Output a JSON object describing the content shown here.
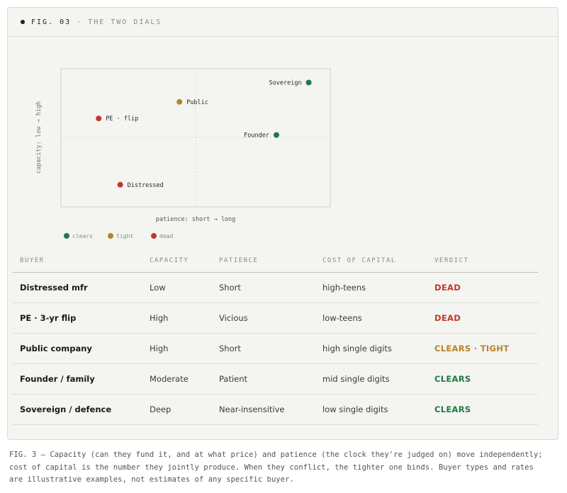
{
  "figure": {
    "label": "FIG. 03",
    "separator": "·",
    "title": "THE TWO DIALS"
  },
  "colors": {
    "clears": "#1e7a45",
    "tight": "#b5832a",
    "dead": "#c0392b"
  },
  "chart_data": {
    "type": "scatter",
    "xlabel": "patience: short → long",
    "ylabel": "capacity: low → high",
    "xlim": [
      0,
      1
    ],
    "ylim": [
      0,
      1
    ],
    "points": [
      {
        "label": "Sovereign",
        "x": 0.92,
        "y": 0.9,
        "status": "clears"
      },
      {
        "label": "Public",
        "x": 0.44,
        "y": 0.76,
        "status": "tight"
      },
      {
        "label": "PE · flip",
        "x": 0.14,
        "y": 0.64,
        "status": "dead"
      },
      {
        "label": "Founder",
        "x": 0.8,
        "y": 0.52,
        "status": "clears"
      },
      {
        "label": "Distressed",
        "x": 0.22,
        "y": 0.16,
        "status": "dead"
      }
    ],
    "legend": [
      {
        "key": "clears",
        "label": "clears"
      },
      {
        "key": "tight",
        "label": "tight"
      },
      {
        "key": "dead",
        "label": "dead"
      }
    ]
  },
  "table": {
    "headers": [
      "BUYER",
      "CAPACITY",
      "PATIENCE",
      "COST OF CAPITAL",
      "VERDICT"
    ],
    "rows": [
      {
        "buyer": "Distressed mfr",
        "capacity": "Low",
        "patience": "Short",
        "cost": "high-teens",
        "verdict": "DEAD",
        "status": "dead"
      },
      {
        "buyer": "PE · 3-yr flip",
        "capacity": "High",
        "patience": "Vicious",
        "cost": "low-teens",
        "verdict": "DEAD",
        "status": "dead"
      },
      {
        "buyer": "Public company",
        "capacity": "High",
        "patience": "Short",
        "cost": "high single digits",
        "verdict": "CLEARS · TIGHT",
        "status": "tight"
      },
      {
        "buyer": "Founder / family",
        "capacity": "Moderate",
        "patience": "Patient",
        "cost": "mid single digits",
        "verdict": "CLEARS",
        "status": "clears"
      },
      {
        "buyer": "Sovereign / defence",
        "capacity": "Deep",
        "patience": "Near-insensitive",
        "cost": "low single digits",
        "verdict": "CLEARS",
        "status": "clears"
      }
    ]
  },
  "caption": {
    "line1": "FIG. 3 — Capacity (can they fund it, and at what price) and patience (the clock they're judged on) move independently;",
    "line2": "cost of capital is the number they jointly produce. When they conflict, the tighter one binds. Buyer types and rates",
    "line3": "are illustrative examples, not estimates of any specific buyer."
  }
}
